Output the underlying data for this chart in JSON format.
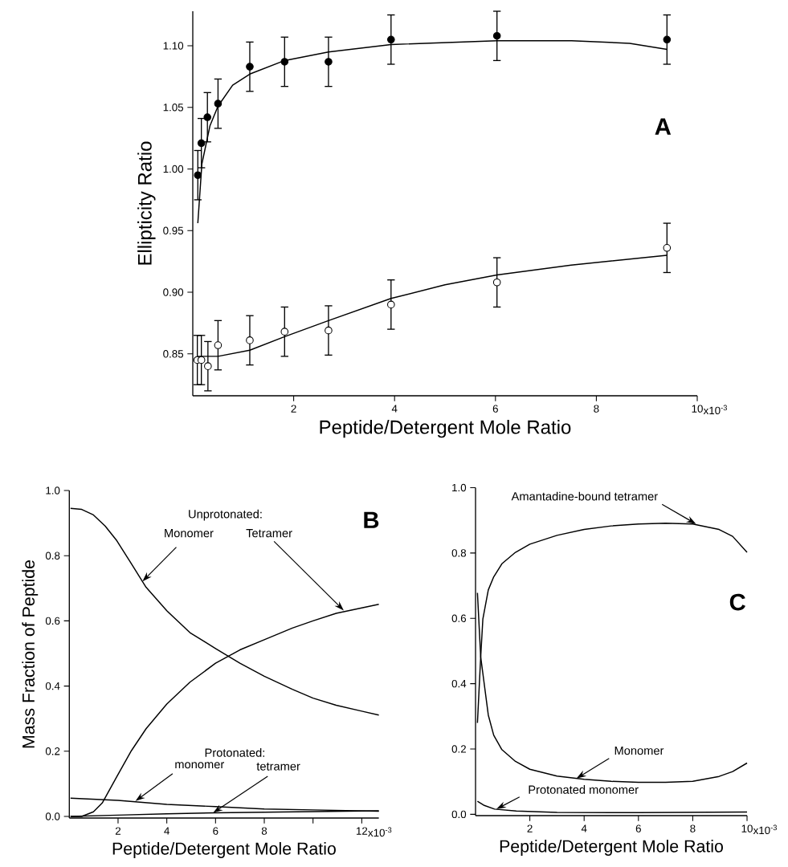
{
  "chart_data": [
    {
      "type": "scatter",
      "xlabel": "Peptide/Detergent Mole Ratio",
      "ylabel": "Ellipticity Ratio",
      "xlim": [
        0,
        10
      ],
      "xticks": [
        2,
        4,
        6,
        8,
        10
      ],
      "ylim": [
        0.816,
        1.128
      ],
      "yticks": [
        0.85,
        {
          "value": 0.9,
          "label": "0.90"
        },
        0.95,
        {
          "value": 1.0,
          "label": "1.00"
        },
        1.05,
        {
          "value": 1.1,
          "label": "1.10"
        }
      ],
      "annotations": [
        "A",
        "x10$^{-3}$"
      ],
      "series": [
        {
          "type": "scatter",
          "marker": "circle",
          "color": "#000000",
          "x": [
            0.1,
            0.17,
            0.29,
            0.5,
            1.13,
            1.82,
            2.69,
            3.93,
            6.03,
            9.4
          ],
          "values": [
            0.995,
            1.021,
            1.042,
            1.053,
            1.083,
            1.087,
            1.087,
            1.105,
            1.108,
            1.105
          ],
          "errors": [
            0.02,
            0.02,
            0.02,
            0.02,
            0.02,
            0.02,
            0.02,
            0.02,
            0.02,
            0.02
          ]
        },
        {
          "type": "scatter",
          "marker": "circle",
          "color": "#ffffff",
          "x": [
            0.09,
            0.17,
            0.3,
            0.5,
            1.13,
            1.82,
            2.69,
            3.93,
            6.03,
            9.4
          ],
          "values": [
            0.845,
            0.845,
            0.84,
            0.857,
            0.861,
            0.868,
            0.869,
            0.89,
            0.908,
            0.936
          ],
          "errors": [
            0.02,
            0.02,
            0.02,
            0.02,
            0.02,
            0.02,
            0.02,
            0.02,
            0.02,
            0.02
          ]
        },
        {
          "type": "line",
          "marker": "none",
          "color": "#000000",
          "x": [
            0.1,
            0.18,
            0.34,
            0.5,
            0.79,
            1.13,
            1.82,
            2.69,
            3.93,
            6.03,
            7.51,
            8.66,
            9.4
          ],
          "values": [
            0.956,
            1.004,
            1.035,
            1.051,
            1.068,
            1.077,
            1.088,
            1.095,
            1.101,
            1.104,
            1.104,
            1.102,
            1.097
          ]
        },
        {
          "type": "line",
          "marker": "none",
          "color": "#000000",
          "x": [
            0.1,
            0.5,
            1.13,
            1.82,
            2.69,
            3.93,
            5.0,
            6.03,
            7.5,
            9.4
          ],
          "values": [
            0.848,
            0.848,
            0.853,
            0.864,
            0.877,
            0.895,
            0.906,
            0.914,
            0.922,
            0.93
          ]
        }
      ]
    },
    {
      "type": "line",
      "xlabel": "Peptide/Detergent Mole Ratio",
      "ylabel": "Mass Fraction of Peptide",
      "xlim": [
        0,
        12.7
      ],
      "xticks": [
        2,
        4,
        6,
        8,
        {
          "value": 10,
          "label": null
        },
        12
      ],
      "ylim": [
        -0.005,
        1.0
      ],
      "yticks": [
        {
          "value": 0,
          "label": "0.0"
        },
        0.2,
        0.4,
        0.6,
        0.8,
        {
          "value": 1.0,
          "label": "1.0"
        }
      ],
      "annotations": [
        "B",
        "Unprotonated:",
        {
          "text": "Monomer",
          "x": 3.0,
          "y": 0.721
        },
        {
          "text": "Tetramer",
          "x": 11.26,
          "y": 0.632
        },
        "Protonated:",
        {
          "text": "monomer",
          "x": 2.71,
          "y": 0.047
        },
        {
          "text": "tetramer",
          "x": 5.9,
          "y": 0.011
        },
        "x10$^{-3}$"
      ],
      "series": [
        {
          "color": "#000000",
          "x": [
            0.05,
            0.51,
            0.99,
            1.47,
            1.95,
            2.55,
            3.15,
            4.0,
            4.95,
            6.0,
            7.0,
            8.0,
            9.15,
            10.0,
            10.95,
            12.0,
            12.7
          ],
          "values": [
            0.945,
            0.942,
            0.925,
            0.891,
            0.846,
            0.775,
            0.703,
            0.631,
            0.564,
            0.515,
            0.47,
            0.43,
            0.39,
            0.363,
            0.341,
            0.323,
            0.311
          ]
        },
        {
          "color": "#000000",
          "x": [
            0.05,
            0.51,
            0.99,
            1.35,
            1.95,
            2.55,
            3.15,
            4.0,
            4.95,
            6.0,
            7.0,
            8.0,
            9.15,
            10.0,
            10.95,
            12.0,
            12.7
          ],
          "values": [
            0.0,
            0.0,
            0.014,
            0.041,
            0.122,
            0.202,
            0.269,
            0.345,
            0.412,
            0.47,
            0.511,
            0.542,
            0.578,
            0.6,
            0.623,
            0.64,
            0.651
          ]
        },
        {
          "color": "#000000",
          "x": [
            0.05,
            2.0,
            4.0,
            6.0,
            8.0,
            10.0,
            12.7
          ],
          "values": [
            0.056,
            0.049,
            0.037,
            0.03,
            0.023,
            0.02,
            0.016
          ]
        },
        {
          "color": "#000000",
          "x": [
            0.05,
            2.0,
            4.0,
            6.0,
            8.0,
            10.0,
            12.7
          ],
          "values": [
            0.0,
            0.004,
            0.008,
            0.011,
            0.013,
            0.015,
            0.017
          ]
        }
      ]
    },
    {
      "type": "line",
      "xlabel": "Peptide/Detergent Mole Ratio",
      "xlim": [
        0,
        10
      ],
      "xticks": [
        2,
        4,
        6,
        8,
        10
      ],
      "ylim": [
        -0.004,
        1.0
      ],
      "yticks": [
        {
          "value": 0,
          "label": "0.0"
        },
        0.2,
        0.4,
        0.6,
        0.8,
        {
          "value": 1.0,
          "label": "1.0"
        }
      ],
      "annotations": [
        "C",
        {
          "text": "Amantadine-bound tetramer",
          "x": 8.12,
          "y": 0.889
        },
        {
          "text": "Monomer",
          "x": 3.72,
          "y": 0.11
        },
        {
          "text": "Protonated monomer",
          "x": 0.77,
          "y": 0.016
        },
        "x10$^{-3}$"
      ],
      "series": [
        {
          "color": "#000000",
          "x": [
            0.07,
            0.19,
            0.47,
            0.67,
            0.97,
            1.47,
            2.0,
            3.0,
            4.0,
            5.0,
            6.0,
            7.0,
            8.0,
            8.97,
            9.47,
            10.0
          ],
          "values": [
            0.678,
            0.482,
            0.304,
            0.242,
            0.198,
            0.162,
            0.138,
            0.117,
            0.107,
            0.101,
            0.098,
            0.098,
            0.101,
            0.116,
            0.131,
            0.157
          ]
        },
        {
          "color": "#000000",
          "x": [
            0.07,
            0.19,
            0.27,
            0.47,
            0.67,
            0.97,
            1.47,
            2.0,
            3.0,
            4.0,
            5.0,
            6.0,
            7.0,
            8.0,
            8.97,
            9.47,
            10.0
          ],
          "values": [
            0.28,
            0.482,
            0.598,
            0.687,
            0.727,
            0.767,
            0.802,
            0.827,
            0.854,
            0.872,
            0.883,
            0.889,
            0.891,
            0.889,
            0.872,
            0.851,
            0.802
          ]
        },
        {
          "color": "#000000",
          "x": [
            0.07,
            0.3,
            0.7,
            1.5,
            3.0,
            6.0,
            10.0
          ],
          "values": [
            0.04,
            0.028,
            0.016,
            0.01,
            0.006,
            0.005,
            0.007
          ]
        }
      ]
    }
  ]
}
